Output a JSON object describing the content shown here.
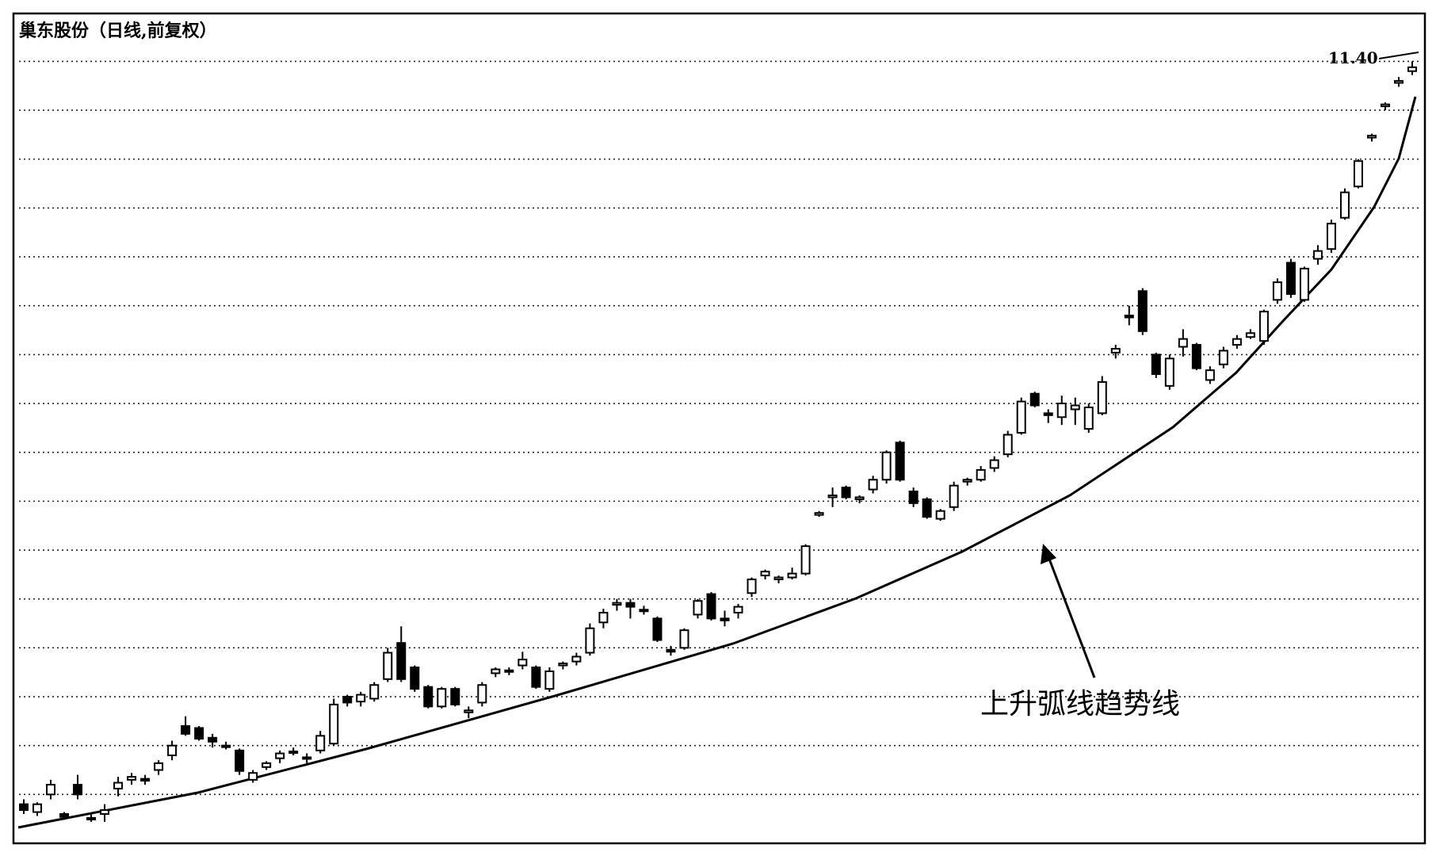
{
  "chart_data": {
    "type": "candlestick",
    "title": "巢东股份（日线,前复权）",
    "annotation": "上升弧线趋势线",
    "max_label": "11.40",
    "color": "#000000",
    "ylim": [
      3.4,
      11.89
    ],
    "yticks": [
      3.9,
      4.4,
      4.9,
      5.4,
      5.9,
      6.4,
      6.9,
      7.4,
      7.9,
      8.4,
      8.9,
      9.4,
      9.9,
      10.4,
      10.9,
      11.4
    ],
    "grid": true,
    "open": [
      3.8,
      3.72,
      3.9,
      3.7,
      4.0,
      3.66,
      3.7,
      3.96,
      4.05,
      4.06,
      4.15,
      4.3,
      4.6,
      4.58,
      4.48,
      4.4,
      4.35,
      4.05,
      4.18,
      4.27,
      4.34,
      4.28,
      4.35,
      4.42,
      4.9,
      4.85,
      4.88,
      5.08,
      5.45,
      5.2,
      5.0,
      4.8,
      4.98,
      4.74,
      4.84,
      5.14,
      5.16,
      5.22,
      5.2,
      4.98,
      5.22,
      5.26,
      5.35,
      5.66,
      5.84,
      5.86,
      5.79,
      5.7,
      5.38,
      5.4,
      5.74,
      5.95,
      5.7,
      5.76,
      5.96,
      6.14,
      6.1,
      6.12,
      6.16,
      6.76,
      6.94,
      7.04,
      6.92,
      7.02,
      7.12,
      7.5,
      7.0,
      6.92,
      6.72,
      6.84,
      7.1,
      7.12,
      7.24,
      7.38,
      7.6,
      8.0,
      7.8,
      7.76,
      7.84,
      7.64,
      7.8,
      8.42,
      8.8,
      9.05,
      8.4,
      8.08,
      8.48,
      8.5,
      8.14,
      8.3,
      8.5,
      8.58,
      8.54,
      8.96,
      9.34,
      8.96,
      9.38,
      9.48,
      9.8,
      10.12,
      10.62,
      10.94,
      11.18,
      11.3
    ],
    "high": [
      3.85,
      3.82,
      4.05,
      3.72,
      4.1,
      3.7,
      3.8,
      4.08,
      4.12,
      4.1,
      4.25,
      4.45,
      4.7,
      4.6,
      4.52,
      4.44,
      4.37,
      4.15,
      4.24,
      4.35,
      4.38,
      4.32,
      4.55,
      4.88,
      4.92,
      4.95,
      5.05,
      5.4,
      5.62,
      5.22,
      5.02,
      5.0,
      5.0,
      4.8,
      5.05,
      5.2,
      5.2,
      5.36,
      5.22,
      5.2,
      5.26,
      5.35,
      5.65,
      5.8,
      5.9,
      5.9,
      5.83,
      5.72,
      5.42,
      5.6,
      5.9,
      5.97,
      5.78,
      5.85,
      6.12,
      6.2,
      6.14,
      6.22,
      6.46,
      6.8,
      7.04,
      7.06,
      6.96,
      7.16,
      7.42,
      7.52,
      7.04,
      6.94,
      6.82,
      7.1,
      7.14,
      7.26,
      7.36,
      7.62,
      7.96,
      8.02,
      7.84,
      7.98,
      7.96,
      7.9,
      8.18,
      8.5,
      8.9,
      9.08,
      8.42,
      8.4,
      8.66,
      8.52,
      8.28,
      8.48,
      8.6,
      8.66,
      8.86,
      9.18,
      9.38,
      9.3,
      9.52,
      9.78,
      10.1,
      10.4,
      10.66,
      10.98,
      11.24,
      11.4
    ],
    "low": [
      3.7,
      3.68,
      3.85,
      3.64,
      3.85,
      3.62,
      3.62,
      3.88,
      4.0,
      4.0,
      4.1,
      4.25,
      4.5,
      4.45,
      4.38,
      4.36,
      4.1,
      4.02,
      4.15,
      4.22,
      4.3,
      4.22,
      4.32,
      4.4,
      4.8,
      4.8,
      4.85,
      5.05,
      5.05,
      4.95,
      4.78,
      4.78,
      4.8,
      4.68,
      4.8,
      5.1,
      5.12,
      5.18,
      4.98,
      4.95,
      5.18,
      5.22,
      5.32,
      5.6,
      5.78,
      5.7,
      5.74,
      5.46,
      5.32,
      5.38,
      5.7,
      5.68,
      5.62,
      5.7,
      5.92,
      6.1,
      6.06,
      6.1,
      6.14,
      6.74,
      6.84,
      6.92,
      6.88,
      6.98,
      7.08,
      7.1,
      6.84,
      6.72,
      6.7,
      6.8,
      7.06,
      7.1,
      7.2,
      7.35,
      7.58,
      7.86,
      7.7,
      7.68,
      7.68,
      7.6,
      7.78,
      8.36,
      8.7,
      8.6,
      8.16,
      8.04,
      8.38,
      8.24,
      8.1,
      8.26,
      8.46,
      8.56,
      8.5,
      8.92,
      8.98,
      8.94,
      9.32,
      9.44,
      9.78,
      10.1,
      10.58,
      10.9,
      11.14,
      11.26
    ],
    "close": [
      3.74,
      3.8,
      4.0,
      3.67,
      3.9,
      3.65,
      3.74,
      4.02,
      4.08,
      4.04,
      4.22,
      4.4,
      4.52,
      4.47,
      4.44,
      4.4,
      4.14,
      4.12,
      4.22,
      4.32,
      4.33,
      4.27,
      4.5,
      4.82,
      4.84,
      4.92,
      5.02,
      5.35,
      5.08,
      4.98,
      4.8,
      4.98,
      4.82,
      4.76,
      5.02,
      5.18,
      5.17,
      5.28,
      5.0,
      5.16,
      5.24,
      5.31,
      5.6,
      5.76,
      5.86,
      5.82,
      5.78,
      5.48,
      5.36,
      5.58,
      5.88,
      5.7,
      5.68,
      5.82,
      6.1,
      6.18,
      6.12,
      6.16,
      6.44,
      6.78,
      6.96,
      6.94,
      6.94,
      7.12,
      7.4,
      7.12,
      6.88,
      6.74,
      6.8,
      7.06,
      7.12,
      7.22,
      7.32,
      7.58,
      7.92,
      7.88,
      7.78,
      7.9,
      7.88,
      7.86,
      8.12,
      8.46,
      8.78,
      8.64,
      8.2,
      8.36,
      8.56,
      8.26,
      8.24,
      8.44,
      8.56,
      8.62,
      8.84,
      9.14,
      9.02,
      9.28,
      9.46,
      9.74,
      10.06,
      10.38,
      10.64,
      10.96,
      11.2,
      11.34
    ]
  }
}
